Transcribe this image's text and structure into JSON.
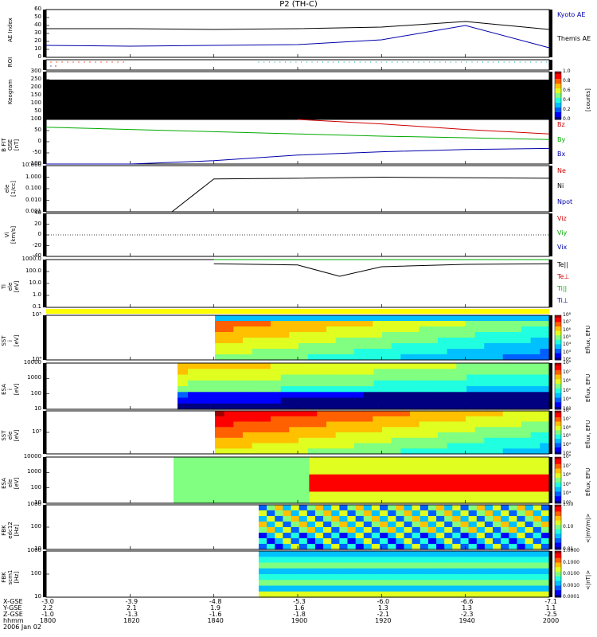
{
  "title": "P2 (TH-C)",
  "panels": [
    {
      "id": "ae",
      "ylabel": "AE Index",
      "ticks": [
        "60",
        "50",
        "40",
        "30",
        "20",
        "10",
        "0"
      ],
      "right": [
        {
          "text": "Kyoto AE",
          "color": "#0000aa"
        },
        {
          "text": "Themis AE",
          "color": "#000000"
        }
      ]
    },
    {
      "id": "roi",
      "ylabel": "ROI",
      "ticks": [],
      "right": []
    },
    {
      "id": "keogram",
      "ylabel": "Keogram",
      "ticks": [
        "300",
        "250",
        "200",
        "150",
        "100",
        "50",
        "0"
      ],
      "right": [],
      "colorbar": {
        "ticks": [
          "1.0",
          "0.8",
          "0.6",
          "0.4",
          "0.2",
          "0.0"
        ],
        "label": "[counts]"
      }
    },
    {
      "id": "bfit",
      "ylabel": "B FIT\nGSE\n[nT]",
      "ticks": [
        "100",
        "50",
        "0",
        "-50",
        "-100"
      ],
      "right": [
        {
          "text": "Bz",
          "color": "#cc0000"
        },
        {
          "text": "By",
          "color": "#00aa00"
        },
        {
          "text": "Bx",
          "color": "#0000aa"
        }
      ]
    },
    {
      "id": "ele",
      "ylabel": "ele\n[1/cc]",
      "ticks": [
        "10.000",
        "1.000",
        "0.100",
        "0.010",
        "0.001"
      ],
      "right": [
        {
          "text": "Ne",
          "color": "#cc0000"
        },
        {
          "text": "Ni",
          "color": "#000000"
        },
        {
          "text": "Npot",
          "color": "#0000aa"
        }
      ]
    },
    {
      "id": "vi",
      "ylabel": "Vi\n[km/s]",
      "ticks": [
        "40",
        "20",
        "0",
        "-20",
        "-40"
      ],
      "right": [
        {
          "text": "Viz",
          "color": "#cc0000"
        },
        {
          "text": "Viy",
          "color": "#00aa00"
        },
        {
          "text": "Vix",
          "color": "#0000aa"
        }
      ]
    },
    {
      "id": "ti",
      "ylabel": "Ti\nele\n[eV]",
      "ticks": [
        "1000.0",
        "100.0",
        "10.0",
        "1.0",
        "0.1"
      ],
      "right": [
        {
          "text": "Te||",
          "color": "#000000"
        },
        {
          "text": "Te⊥",
          "color": "#cc0000"
        },
        {
          "text": "Ti||",
          "color": "#00aa00"
        },
        {
          "text": "Ti⊥",
          "color": "#0000aa"
        }
      ]
    },
    {
      "id": "sst1",
      "ylabel": "SST\ni\n[eV]",
      "ticks": [
        "10⁵",
        "10⁴"
      ],
      "right": [],
      "colorbar": {
        "ticks": [
          "10⁸",
          "10⁷",
          "10⁶",
          "10⁵",
          "10⁴",
          "10³",
          "10²"
        ],
        "label": "Eflux, EFU"
      }
    },
    {
      "id": "esa1",
      "ylabel": "ESA\ni\n[eV]",
      "ticks": [
        "10000",
        "1000",
        "100",
        "10"
      ],
      "right": [],
      "colorbar": {
        "ticks": [
          "10⁸",
          "10⁷",
          "10⁶",
          "10⁵",
          "10⁴",
          "10³"
        ],
        "label": "Eflux, EFU"
      }
    },
    {
      "id": "sst2",
      "ylabel": "SST\nele\n[eV]",
      "ticks": [
        "10⁵"
      ],
      "right": [],
      "colorbar": {
        "ticks": [
          "10⁸",
          "10⁷",
          "10⁶",
          "10⁵",
          "10⁴",
          "10³"
        ],
        "label": "Eflux, EFU"
      }
    },
    {
      "id": "esa2",
      "ylabel": "ESA\nele\n[eV]",
      "ticks": [
        "10000",
        "1000",
        "100",
        "10"
      ],
      "right": [],
      "colorbar": {
        "ticks": [
          "10⁸",
          "10⁷",
          "10⁶",
          "10⁵",
          "10⁴",
          "10³"
        ],
        "label": "Eflux, EFU"
      }
    },
    {
      "id": "fbk1",
      "ylabel": "FBK\nedc12\n[Hz]",
      "ticks": [
        "1000",
        "100",
        "10"
      ],
      "right": [],
      "colorbar": {
        "ticks": [
          "1.00",
          "0.10",
          "0.01"
        ],
        "label": "<|mV/m|>"
      }
    },
    {
      "id": "fbk2",
      "ylabel": "FBK\nscm1\n[Hz]",
      "ticks": [
        "1000",
        "100",
        "10"
      ],
      "right": [],
      "colorbar": {
        "ticks": [
          "1.0000",
          "0.1000",
          "0.0100",
          "0.0010",
          "0.0001"
        ],
        "label": "<|nT|>"
      }
    }
  ],
  "xaxis": {
    "row_labels": [
      "X-GSE",
      "Y-GSE",
      "Z-GSE",
      "hhmm",
      "2006 Jan 02"
    ],
    "columns": [
      [
        "-3.0",
        "2.2",
        "-1.0",
        "1800"
      ],
      [
        "-3.9",
        "2.1",
        "-1.3",
        "1820"
      ],
      [
        "-4.8",
        "1.9",
        "-1.6",
        "1840"
      ],
      [
        "-5.3",
        "1.6",
        "-1.8",
        "1900"
      ],
      [
        "-6.0",
        "1.3",
        "-2.1",
        "1920"
      ],
      [
        "-6.6",
        "1.3",
        "-2.3",
        "1940"
      ],
      [
        "-7.1",
        "1.1",
        "-2.5",
        "2000"
      ]
    ]
  },
  "chart_data": {
    "type": "line",
    "title": "P2 (TH-C)",
    "x": [
      "1800",
      "1820",
      "1840",
      "1900",
      "1920",
      "1940",
      "2000"
    ],
    "series": [
      {
        "name": "Themis AE",
        "x": [
          "1800",
          "1820",
          "1840",
          "1900",
          "1920",
          "1940",
          "2000"
        ],
        "values": [
          36,
          36,
          35,
          36,
          38,
          45,
          35
        ]
      },
      {
        "name": "Kyoto AE",
        "x": [
          "1800",
          "1820",
          "1840",
          "1900",
          "1920",
          "1940",
          "2000"
        ],
        "values": [
          15,
          14,
          15,
          16,
          22,
          40,
          12
        ]
      },
      {
        "name": "Bz",
        "x": [
          "1900",
          "1920",
          "1940",
          "2000"
        ],
        "values": [
          100,
          80,
          55,
          35
        ]
      },
      {
        "name": "By",
        "x": [
          "1800",
          "1820",
          "1840",
          "1900",
          "1920",
          "1940",
          "2000"
        ],
        "values": [
          65,
          55,
          45,
          35,
          25,
          18,
          10
        ]
      },
      {
        "name": "Bx",
        "x": [
          "1800",
          "1820",
          "1840",
          "1900",
          "1920",
          "1940",
          "2000"
        ],
        "values": [
          -140,
          -110,
          -85,
          -60,
          -45,
          -35,
          -30
        ]
      },
      {
        "name": "Ni",
        "x": [
          "1830",
          "1840",
          "1900",
          "1920",
          "1940",
          "2000"
        ],
        "values": [
          0.001,
          0.7,
          0.8,
          1.0,
          0.9,
          0.8
        ]
      },
      {
        "name": "Te||",
        "x": [
          "1840",
          "1900",
          "1910",
          "1920",
          "1940",
          "2000"
        ],
        "values": [
          450,
          350,
          40,
          250,
          400,
          450
        ]
      },
      {
        "name": "Ti||",
        "x": [
          "1840",
          "1900",
          "1920",
          "1940",
          "2000"
        ],
        "values": [
          1200,
          1400,
          2800,
          3000,
          3000
        ]
      }
    ]
  }
}
